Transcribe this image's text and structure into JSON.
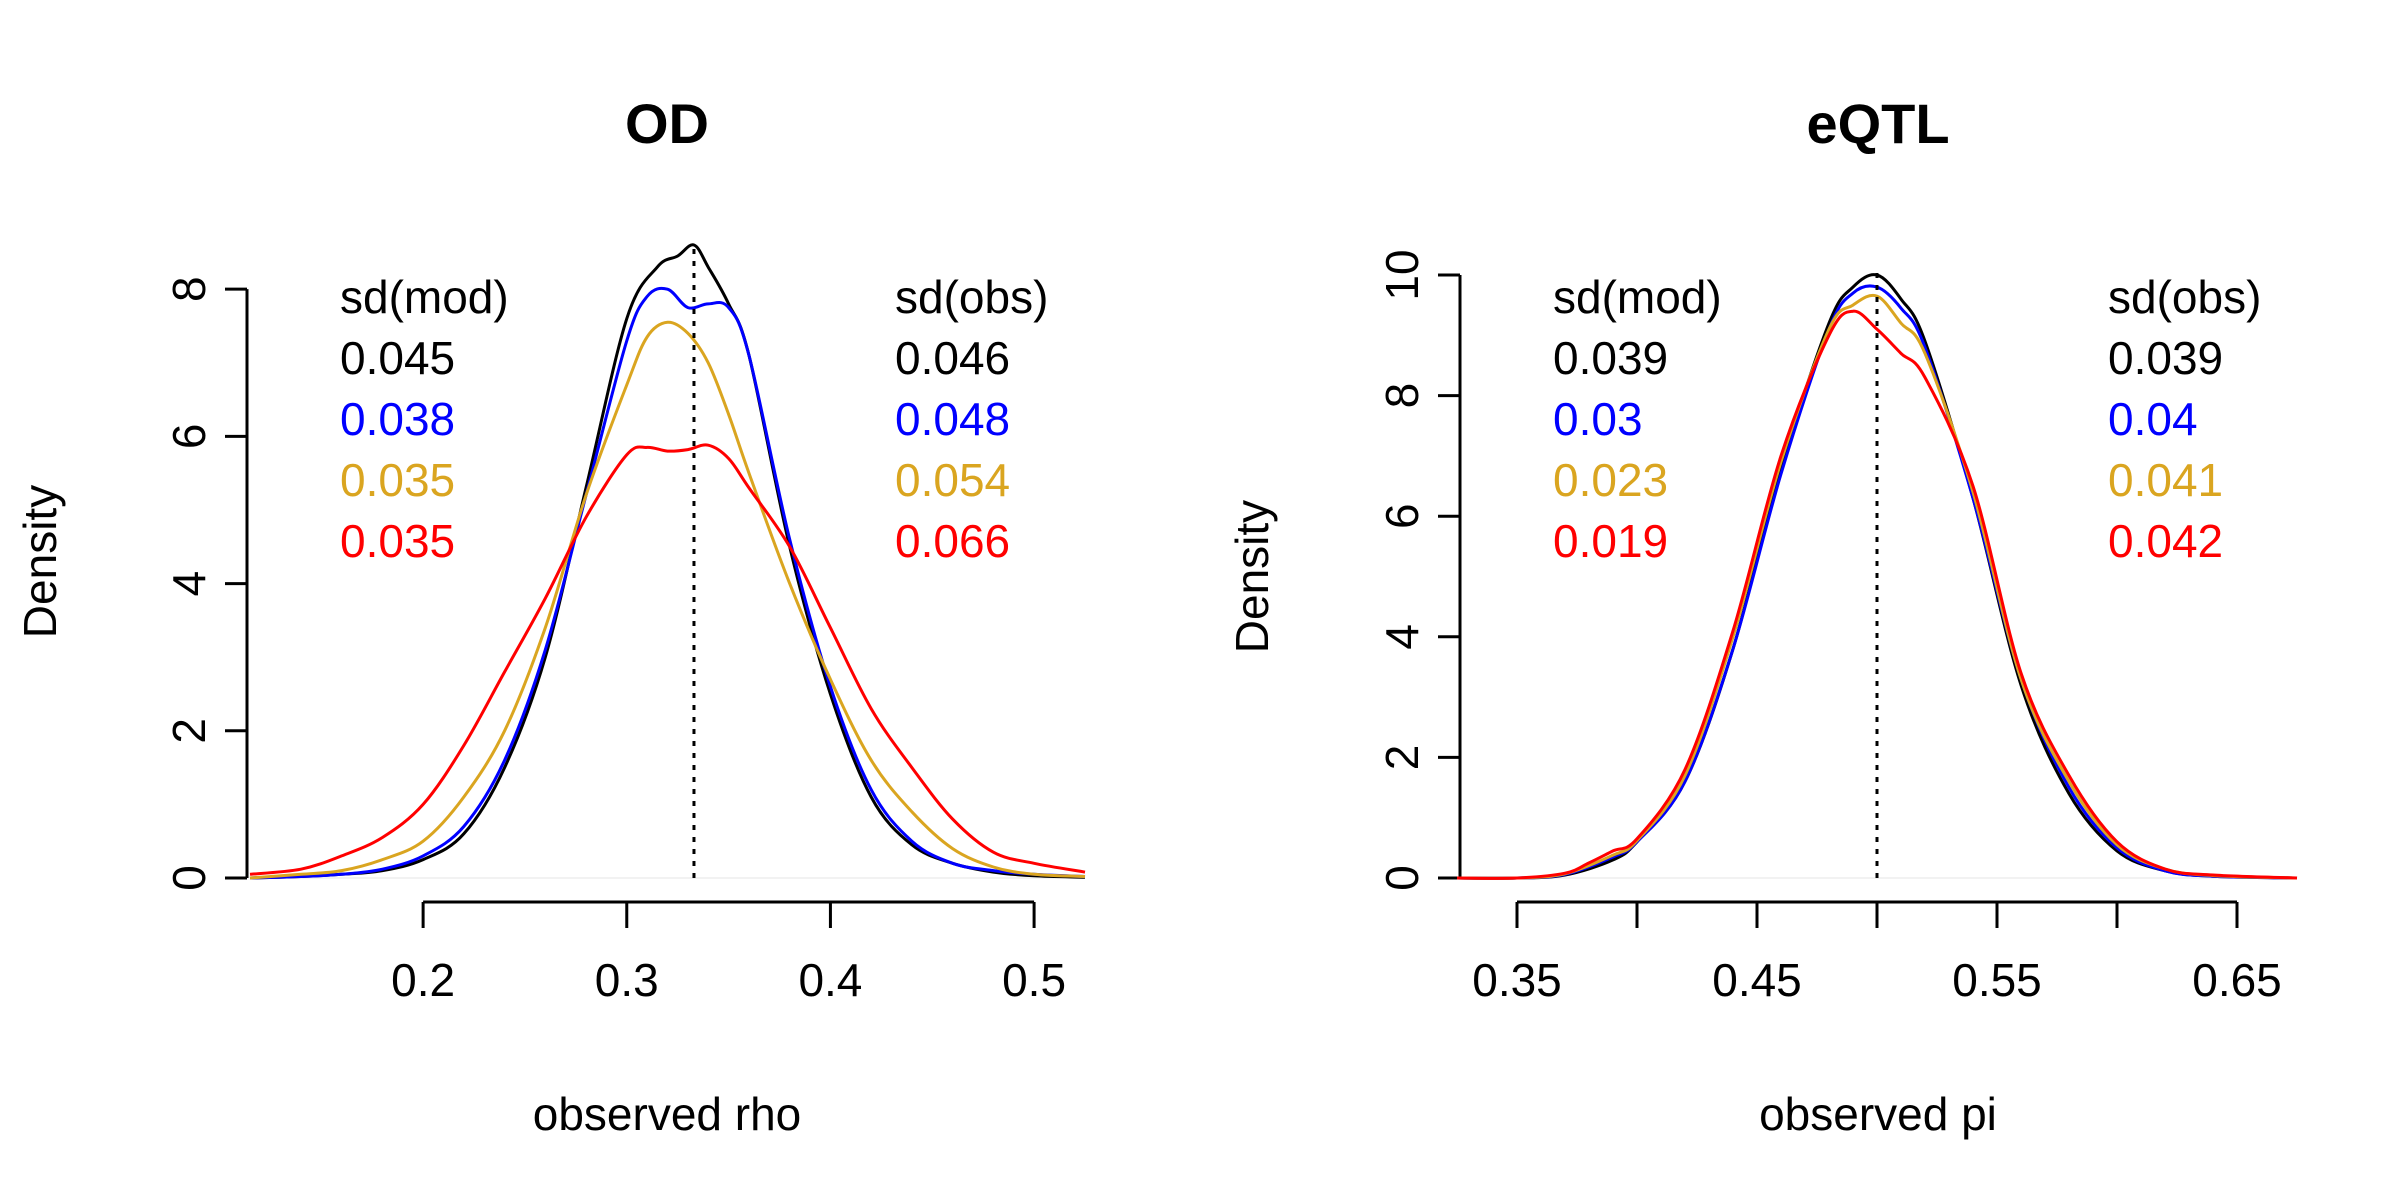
{
  "colors": {
    "black": "#000000",
    "blue": "#0000ff",
    "goldenrod": "#daa520",
    "red": "#ff0000"
  },
  "chart_data": [
    {
      "type": "line",
      "title": "OD",
      "xlabel": "observed rho",
      "ylabel": "Density",
      "xlim": [
        0.115,
        0.525
      ],
      "ylim": [
        0,
        8.6
      ],
      "xticks": [
        0.2,
        0.3,
        0.4,
        0.5
      ],
      "xtick_labels": [
        "0.2",
        "0.3",
        "0.4",
        "0.5"
      ],
      "yticks": [
        0,
        2,
        4,
        6,
        8
      ],
      "ytick_labels": [
        "0",
        "2",
        "4",
        "6",
        "8"
      ],
      "reference_x": 0.333,
      "grid": false,
      "annotation_left": {
        "header": "sd(mod)",
        "values": [
          {
            "text": "0.045",
            "color": "#000000"
          },
          {
            "text": "0.038",
            "color": "#0000ff"
          },
          {
            "text": "0.035",
            "color": "#daa520"
          },
          {
            "text": "0.035",
            "color": "#ff0000"
          }
        ]
      },
      "annotation_right": {
        "header": "sd(obs)",
        "values": [
          {
            "text": "0.046",
            "color": "#000000"
          },
          {
            "text": "0.048",
            "color": "#0000ff"
          },
          {
            "text": "0.054",
            "color": "#daa520"
          },
          {
            "text": "0.066",
            "color": "#ff0000"
          }
        ]
      },
      "series": [
        {
          "color": "#000000",
          "x": [
            0.115,
            0.14,
            0.16,
            0.18,
            0.2,
            0.22,
            0.24,
            0.26,
            0.28,
            0.3,
            0.315,
            0.325,
            0.333,
            0.34,
            0.35,
            0.36,
            0.38,
            0.4,
            0.42,
            0.44,
            0.46,
            0.48,
            0.5,
            0.525
          ],
          "y": [
            0.0,
            0.02,
            0.05,
            0.1,
            0.25,
            0.6,
            1.5,
            3.0,
            5.3,
            7.6,
            8.3,
            8.45,
            8.6,
            8.3,
            7.8,
            7.1,
            4.5,
            2.5,
            1.1,
            0.45,
            0.2,
            0.08,
            0.03,
            0.01
          ]
        },
        {
          "color": "#0000ff",
          "x": [
            0.115,
            0.14,
            0.16,
            0.18,
            0.2,
            0.22,
            0.24,
            0.26,
            0.28,
            0.3,
            0.31,
            0.32,
            0.33,
            0.34,
            0.35,
            0.36,
            0.38,
            0.4,
            0.42,
            0.44,
            0.46,
            0.48,
            0.5,
            0.525
          ],
          "y": [
            0.0,
            0.02,
            0.05,
            0.12,
            0.3,
            0.7,
            1.6,
            3.1,
            5.2,
            7.3,
            7.9,
            8.0,
            7.75,
            7.8,
            7.75,
            7.1,
            4.6,
            2.6,
            1.2,
            0.5,
            0.2,
            0.1,
            0.05,
            0.02
          ]
        },
        {
          "color": "#daa520",
          "x": [
            0.115,
            0.14,
            0.16,
            0.18,
            0.2,
            0.22,
            0.24,
            0.26,
            0.28,
            0.3,
            0.31,
            0.32,
            0.33,
            0.34,
            0.35,
            0.36,
            0.38,
            0.4,
            0.42,
            0.44,
            0.46,
            0.48,
            0.5,
            0.525
          ],
          "y": [
            0.0,
            0.05,
            0.1,
            0.25,
            0.5,
            1.1,
            2.0,
            3.4,
            5.2,
            6.7,
            7.35,
            7.55,
            7.4,
            7.0,
            6.3,
            5.5,
            4.0,
            2.7,
            1.6,
            0.9,
            0.4,
            0.15,
            0.05,
            0.02
          ]
        },
        {
          "color": "#ff0000",
          "x": [
            0.115,
            0.14,
            0.16,
            0.18,
            0.2,
            0.22,
            0.24,
            0.26,
            0.28,
            0.3,
            0.31,
            0.32,
            0.33,
            0.34,
            0.35,
            0.36,
            0.38,
            0.4,
            0.42,
            0.44,
            0.46,
            0.48,
            0.5,
            0.525
          ],
          "y": [
            0.05,
            0.12,
            0.3,
            0.55,
            1.0,
            1.8,
            2.8,
            3.8,
            4.9,
            5.75,
            5.85,
            5.8,
            5.82,
            5.88,
            5.7,
            5.3,
            4.5,
            3.4,
            2.3,
            1.5,
            0.8,
            0.35,
            0.2,
            0.08
          ]
        }
      ]
    },
    {
      "type": "line",
      "title": "eQTL",
      "xlabel": "observed pi",
      "ylabel": "Density",
      "xlim": [
        0.325,
        0.675
      ],
      "ylim": [
        0,
        10
      ],
      "xticks": [
        0.35,
        0.4,
        0.45,
        0.5,
        0.55,
        0.6,
        0.65
      ],
      "xtick_labels": [
        "0.35",
        "",
        "0.45",
        "",
        "0.55",
        "",
        "0.65"
      ],
      "yticks": [
        0,
        2,
        4,
        6,
        8,
        10
      ],
      "ytick_labels": [
        "0",
        "2",
        "4",
        "6",
        "8",
        "10"
      ],
      "reference_x": 0.5,
      "grid": false,
      "annotation_left": {
        "header": "sd(mod)",
        "values": [
          {
            "text": "0.039",
            "color": "#000000"
          },
          {
            "text": "0.03",
            "color": "#0000ff"
          },
          {
            "text": "0.023",
            "color": "#daa520"
          },
          {
            "text": "0.019",
            "color": "#ff0000"
          }
        ]
      },
      "annotation_right": {
        "header": "sd(obs)",
        "values": [
          {
            "text": "0.039",
            "color": "#000000"
          },
          {
            "text": "0.04",
            "color": "#0000ff"
          },
          {
            "text": "0.041",
            "color": "#daa520"
          },
          {
            "text": "0.042",
            "color": "#ff0000"
          }
        ]
      },
      "series": [
        {
          "color": "#000000",
          "x": [
            0.325,
            0.35,
            0.37,
            0.39,
            0.4,
            0.42,
            0.44,
            0.46,
            0.48,
            0.49,
            0.5,
            0.51,
            0.52,
            0.54,
            0.56,
            0.58,
            0.6,
            0.62,
            0.64,
            0.675
          ],
          "y": [
            0.0,
            0.0,
            0.05,
            0.3,
            0.6,
            1.6,
            3.8,
            6.8,
            9.2,
            9.8,
            10.0,
            9.6,
            8.9,
            6.3,
            3.2,
            1.4,
            0.45,
            0.12,
            0.03,
            0.0
          ]
        },
        {
          "color": "#0000ff",
          "x": [
            0.325,
            0.35,
            0.37,
            0.39,
            0.4,
            0.42,
            0.44,
            0.46,
            0.48,
            0.49,
            0.5,
            0.51,
            0.52,
            0.54,
            0.56,
            0.58,
            0.6,
            0.62,
            0.64,
            0.675
          ],
          "y": [
            0.0,
            0.0,
            0.06,
            0.35,
            0.6,
            1.6,
            3.8,
            6.7,
            9.1,
            9.7,
            9.8,
            9.45,
            8.8,
            6.3,
            3.3,
            1.5,
            0.5,
            0.12,
            0.03,
            0.0
          ]
        },
        {
          "color": "#daa520",
          "x": [
            0.325,
            0.35,
            0.37,
            0.39,
            0.4,
            0.42,
            0.44,
            0.46,
            0.48,
            0.49,
            0.5,
            0.51,
            0.52,
            0.54,
            0.56,
            0.58,
            0.6,
            0.62,
            0.64,
            0.675
          ],
          "y": [
            0.0,
            0.0,
            0.07,
            0.38,
            0.62,
            1.7,
            4.0,
            6.9,
            9.1,
            9.5,
            9.65,
            9.2,
            8.7,
            6.4,
            3.3,
            1.6,
            0.55,
            0.15,
            0.04,
            0.0
          ]
        },
        {
          "color": "#ff0000",
          "x": [
            0.325,
            0.35,
            0.37,
            0.38,
            0.39,
            0.4,
            0.42,
            0.44,
            0.46,
            0.48,
            0.49,
            0.5,
            0.51,
            0.52,
            0.54,
            0.56,
            0.58,
            0.6,
            0.62,
            0.64,
            0.675
          ],
          "y": [
            0.0,
            0.0,
            0.08,
            0.25,
            0.45,
            0.65,
            1.8,
            4.1,
            7.0,
            9.0,
            9.4,
            9.1,
            8.7,
            8.3,
            6.5,
            3.4,
            1.7,
            0.6,
            0.15,
            0.05,
            0.0
          ]
        }
      ]
    }
  ]
}
